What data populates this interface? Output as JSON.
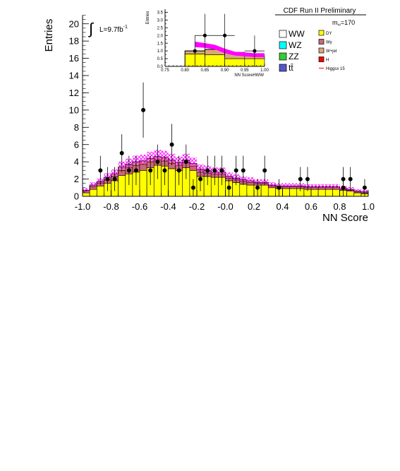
{
  "header": {
    "title": "CDF Run II Preliminary",
    "lumi_prefix": "L=9.7fb",
    "lumi_sup": "-1",
    "mass_label": "m",
    "mass_sub": "H",
    "mass_value": "=170"
  },
  "colors": {
    "DY": "#ffff00",
    "Wg": "#cc6677",
    "Wjet": "#d9a87a",
    "WW": "#ffffff",
    "WZ": "#00ffff",
    "ZZ": "#33cc33",
    "tt": "#5555cc",
    "H": "#ff0000",
    "band": "#ff00ff"
  },
  "legend": {
    "left": [
      {
        "key": "WW",
        "label": "WW",
        "color": "#ffffff"
      },
      {
        "key": "WZ",
        "label": "WZ",
        "color": "#00ffff"
      },
      {
        "key": "ZZ",
        "label": "ZZ",
        "color": "#33cc33"
      },
      {
        "key": "tt",
        "label": "tt̄",
        "color": "#5555cc"
      }
    ],
    "right": [
      {
        "key": "DY",
        "label": "DY",
        "color": "#ffff00"
      },
      {
        "key": "Wg",
        "label": "Wγ",
        "color": "#cc6677"
      },
      {
        "key": "Wjet",
        "label": "W+jet",
        "color": "#d9a87a"
      },
      {
        "key": "H",
        "label": "H",
        "color": "#ff0000"
      },
      {
        "key": "Higgs",
        "label": "Higgsx 15",
        "color": "#ff0000"
      }
    ]
  },
  "chart_data": [
    {
      "type": "bar",
      "xlabel": "NN Score",
      "ylabel": "Entries",
      "xlim": [
        -1.0,
        1.0
      ],
      "ylim": [
        0,
        21
      ],
      "xticks": [
        "-1.0",
        "-0.8",
        "-0.6",
        "-0.4",
        "-0.2",
        "-0.0",
        "0.2",
        "0.4",
        "0.6",
        "0.8",
        "1.0"
      ],
      "yticks": [
        "0",
        "2",
        "4",
        "6",
        "8",
        "10",
        "12",
        "14",
        "16",
        "18",
        "20"
      ],
      "bin_edges": [
        -1.0,
        -0.95,
        -0.9,
        -0.85,
        -0.8,
        -0.75,
        -0.7,
        -0.65,
        -0.6,
        -0.55,
        -0.5,
        -0.45,
        -0.4,
        -0.35,
        -0.3,
        -0.25,
        -0.2,
        -0.15,
        -0.1,
        -0.05,
        0.0,
        0.05,
        0.1,
        0.15,
        0.2,
        0.25,
        0.3,
        0.35,
        0.4,
        0.45,
        0.5,
        0.55,
        0.6,
        0.65,
        0.7,
        0.75,
        0.8,
        0.85,
        0.9,
        0.95,
        1.0
      ],
      "series": [
        {
          "name": "DY",
          "values": [
            0.4,
            0.8,
            1.2,
            1.5,
            1.8,
            2.4,
            2.6,
            2.8,
            3.0,
            3.3,
            3.6,
            3.5,
            3.2,
            3.0,
            3.3,
            3.0,
            2.3,
            2.3,
            2.2,
            2.2,
            1.8,
            1.6,
            1.4,
            1.3,
            1.3,
            1.3,
            1.0,
            0.9,
            0.9,
            0.9,
            0.9,
            0.8,
            0.8,
            0.8,
            0.8,
            0.8,
            0.7,
            0.6,
            0.4,
            0.3
          ]
        },
        {
          "name": "Wγ",
          "values": [
            0.2,
            0.3,
            0.3,
            0.4,
            0.5,
            0.6,
            0.7,
            0.8,
            0.7,
            0.7,
            0.6,
            0.6,
            0.6,
            0.6,
            0.6,
            0.5,
            0.5,
            0.4,
            0.4,
            0.4,
            0.3,
            0.3,
            0.3,
            0.3,
            0.2,
            0.2,
            0.2,
            0.2,
            0.2,
            0.2,
            0.2,
            0.2,
            0.2,
            0.2,
            0.2,
            0.2,
            0.1,
            0.1,
            0.1,
            0.1
          ]
        },
        {
          "name": "W+jet",
          "values": [
            0.1,
            0.2,
            0.2,
            0.3,
            0.3,
            0.4,
            0.4,
            0.4,
            0.4,
            0.4,
            0.4,
            0.4,
            0.4,
            0.3,
            0.3,
            0.3,
            0.3,
            0.3,
            0.2,
            0.2,
            0.2,
            0.2,
            0.2,
            0.2,
            0.1,
            0.1,
            0.1,
            0.1,
            0.1,
            0.1,
            0.1,
            0.1,
            0.1,
            0.1,
            0.1,
            0.1,
            0.1,
            0.1,
            0.1,
            0.1
          ]
        }
      ],
      "data_points": [
        {
          "x": -0.875,
          "y": 3,
          "err": 1.7
        },
        {
          "x": -0.825,
          "y": 2,
          "err": 1.4
        },
        {
          "x": -0.775,
          "y": 2,
          "err": 1.4
        },
        {
          "x": -0.725,
          "y": 5,
          "err": 2.2
        },
        {
          "x": -0.675,
          "y": 3,
          "err": 1.7
        },
        {
          "x": -0.625,
          "y": 3,
          "err": 1.7
        },
        {
          "x": -0.575,
          "y": 10,
          "err": 3.2
        },
        {
          "x": -0.525,
          "y": 3,
          "err": 1.7
        },
        {
          "x": -0.475,
          "y": 4,
          "err": 2.0
        },
        {
          "x": -0.425,
          "y": 3,
          "err": 1.7
        },
        {
          "x": -0.375,
          "y": 6,
          "err": 2.4
        },
        {
          "x": -0.325,
          "y": 3,
          "err": 1.7
        },
        {
          "x": -0.275,
          "y": 4,
          "err": 2.0
        },
        {
          "x": -0.225,
          "y": 1,
          "err": 1.0
        },
        {
          "x": -0.175,
          "y": 2,
          "err": 1.4
        },
        {
          "x": -0.125,
          "y": 3,
          "err": 1.7
        },
        {
          "x": -0.075,
          "y": 3,
          "err": 1.7
        },
        {
          "x": -0.025,
          "y": 3,
          "err": 1.7
        },
        {
          "x": 0.025,
          "y": 1,
          "err": 1.0
        },
        {
          "x": 0.075,
          "y": 3,
          "err": 1.7
        },
        {
          "x": 0.125,
          "y": 3,
          "err": 1.7
        },
        {
          "x": 0.225,
          "y": 1,
          "err": 1.0
        },
        {
          "x": 0.275,
          "y": 3,
          "err": 1.7
        },
        {
          "x": 0.375,
          "y": 1,
          "err": 1.0
        },
        {
          "x": 0.525,
          "y": 2,
          "err": 1.4
        },
        {
          "x": 0.575,
          "y": 2,
          "err": 1.4
        },
        {
          "x": 0.825,
          "y": 1,
          "err": 1.0
        },
        {
          "x": 0.825,
          "y": 2,
          "err": 1.4
        },
        {
          "x": 0.875,
          "y": 2,
          "err": 1.4
        },
        {
          "x": 0.975,
          "y": 1,
          "err": 1.0
        }
      ]
    },
    {
      "type": "bar",
      "xlabel": "NN ScoreHWW",
      "ylabel": "Entries",
      "xlim": [
        0.75,
        1.0
      ],
      "ylim": [
        0,
        3.7
      ],
      "xticks": [
        "0.75",
        "0.80",
        "0.85",
        "0.90",
        "0.95",
        "1.00"
      ],
      "yticks": [
        "0.0",
        "0.5",
        "1.0",
        "1.5",
        "2.0",
        "2.5",
        "3.0",
        "3.5"
      ],
      "bin_edges": [
        0.75,
        0.8,
        0.85,
        0.9,
        0.95,
        1.0
      ],
      "series": [
        {
          "name": "DY",
          "values": [
            0.0,
            0.8,
            0.75,
            0.5,
            0.5
          ]
        },
        {
          "name": "W+jet",
          "values": [
            0.0,
            0.2,
            0.35,
            0.4,
            0.2
          ]
        }
      ],
      "higgs_band": {
        "x": [
          0.825,
          0.85,
          0.875,
          0.9,
          0.925,
          0.95,
          0.975,
          1.0
        ],
        "low": [
          1.25,
          1.2,
          1.1,
          0.85,
          0.7,
          0.65,
          0.6,
          0.6
        ],
        "high": [
          1.6,
          1.5,
          1.4,
          1.15,
          0.95,
          0.9,
          0.85,
          0.85
        ]
      },
      "data_points": [
        {
          "x": 0.825,
          "y": 1,
          "err": 1.0
        },
        {
          "x": 0.85,
          "y": 2,
          "err": 1.4
        },
        {
          "x": 0.9,
          "y": 2,
          "err": 1.4
        },
        {
          "x": 0.975,
          "y": 1,
          "err": 1.0
        }
      ]
    }
  ]
}
